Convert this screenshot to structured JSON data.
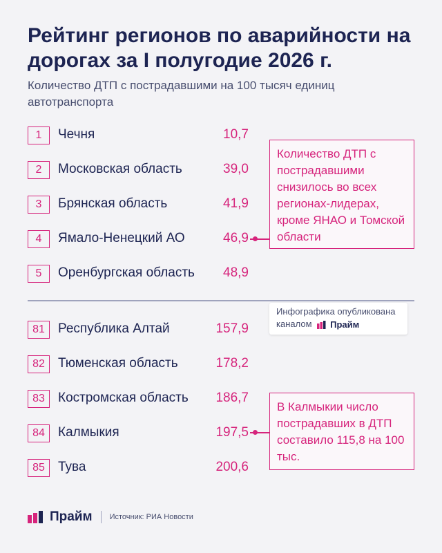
{
  "title": "Рейтинг регионов по аварийности на дорогах за I полугодие 2026 г.",
  "subtitle": "Количество ДТП с пострадавшими на 100 тысяч единиц автотранспорта",
  "colors": {
    "accent": "#d6247c",
    "text": "#1d2452",
    "muted": "#474d6e",
    "background": "#f3f3f6"
  },
  "chart_data": {
    "type": "table",
    "columns": [
      "rank",
      "region",
      "value"
    ],
    "rows": [
      {
        "rank": "1",
        "region": "Чечня",
        "value": "10,7"
      },
      {
        "rank": "2",
        "region": "Московская область",
        "value": "39,0"
      },
      {
        "rank": "3",
        "region": "Брянская область",
        "value": "41,9"
      },
      {
        "rank": "4",
        "region": "Ямало-Ненецкий АО",
        "value": "46,9"
      },
      {
        "rank": "5",
        "region": "Оренбургская область",
        "value": "48,9"
      },
      {
        "rank": "81",
        "region": "Республика Алтай",
        "value": "157,9"
      },
      {
        "rank": "82",
        "region": "Тюменская область",
        "value": "178,2"
      },
      {
        "rank": "83",
        "region": "Костромская область",
        "value": "186,7"
      },
      {
        "rank": "84",
        "region": "Калмыкия",
        "value": "197,5"
      },
      {
        "rank": "85",
        "region": "Тува",
        "value": "200,6"
      }
    ],
    "annotations": [
      {
        "attached_to_rank": "4",
        "text": "Количество ДТП с пострадавшими снизилось во всех регионах-лидерах, кроме ЯНАО и Томской области"
      },
      {
        "attached_to_rank": "84",
        "text": "В Калмыкии число пострадавших в ДТП составило 115,8 на 100 тыс."
      }
    ]
  },
  "publication_note": {
    "text": "Инфографика опубликована каналом",
    "brand": "Прайм"
  },
  "footer": {
    "brand": "Прайм",
    "source": "Источник: РИА Новости"
  },
  "icons": {
    "brand_logo": "prime-logo-icon"
  }
}
